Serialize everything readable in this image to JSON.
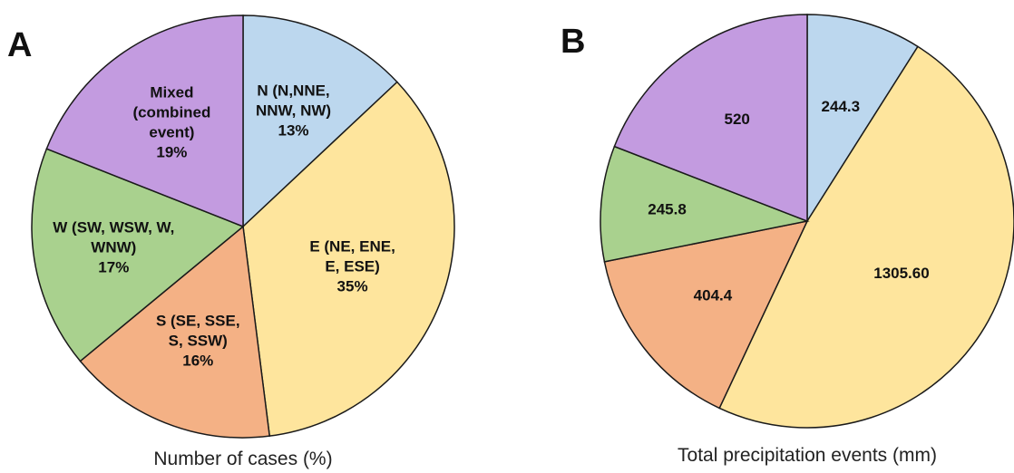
{
  "chart_data": [
    {
      "type": "pie",
      "panel_label": "A",
      "caption": "Number of cases (%)",
      "slices": [
        {
          "label_lines": [
            "N (N,NNE,",
            "NNW, NW)",
            "13%"
          ],
          "value": 13,
          "color": "#bcd7ee"
        },
        {
          "label_lines": [
            "E (NE, ENE,",
            "E, ESE)",
            "35%"
          ],
          "value": 35,
          "color": "#fee59d"
        },
        {
          "label_lines": [
            "S (SE, SSE,",
            "S, SSW)",
            "16%"
          ],
          "value": 16,
          "color": "#f4b185"
        },
        {
          "label_lines": [
            "W (SW, WSW, W,",
            "WNW)",
            "17%"
          ],
          "value": 17,
          "color": "#a9d18e"
        },
        {
          "label_lines": [
            "Mixed",
            "(combined",
            "event)",
            "19%"
          ],
          "value": 19,
          "color": "#c39be0"
        }
      ]
    },
    {
      "type": "pie",
      "panel_label": "B",
      "caption": "Total precipitation events (mm)",
      "slices": [
        {
          "label_lines": [
            "244.3"
          ],
          "value": 244.3,
          "color": "#bcd7ee"
        },
        {
          "label_lines": [
            "1305.60"
          ],
          "value": 1305.6,
          "color": "#fee59d"
        },
        {
          "label_lines": [
            "404.4"
          ],
          "value": 404.4,
          "color": "#f4b185"
        },
        {
          "label_lines": [
            "245.8"
          ],
          "value": 245.8,
          "color": "#a9d18e"
        },
        {
          "label_lines": [
            "520"
          ],
          "value": 520,
          "color": "#c39be0"
        }
      ]
    }
  ]
}
